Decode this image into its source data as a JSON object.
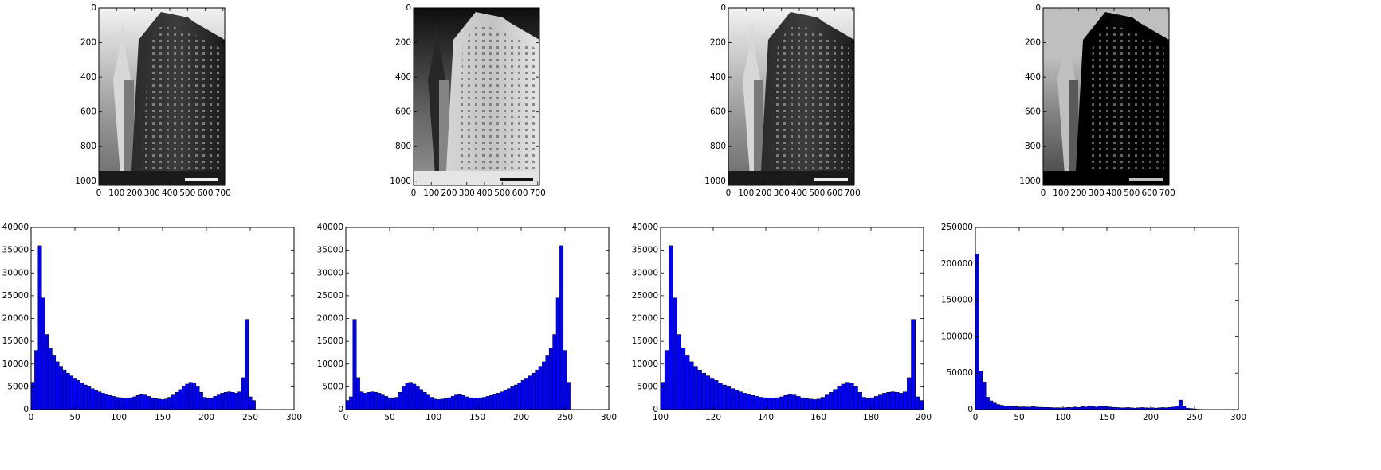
{
  "chart_data": [
    {
      "type": "image",
      "xlim": [
        0,
        710
      ],
      "ylim": [
        1024,
        0
      ],
      "xticks": [
        0,
        100,
        200,
        300,
        400,
        500,
        600,
        700
      ],
      "yticks": [
        0,
        200,
        400,
        600,
        800,
        1000
      ]
    },
    {
      "type": "image",
      "xlim": [
        0,
        710
      ],
      "ylim": [
        1024,
        0
      ],
      "xticks": [
        0,
        100,
        200,
        300,
        400,
        500,
        600,
        700
      ],
      "yticks": [
        0,
        200,
        400,
        600,
        800,
        1000
      ]
    },
    {
      "type": "image",
      "xlim": [
        0,
        710
      ],
      "ylim": [
        1024,
        0
      ],
      "xticks": [
        0,
        100,
        200,
        300,
        400,
        500,
        600,
        700
      ],
      "yticks": [
        0,
        200,
        400,
        600,
        800,
        1000
      ]
    },
    {
      "type": "image",
      "xlim": [
        0,
        710
      ],
      "ylim": [
        1024,
        0
      ],
      "xticks": [
        0,
        100,
        200,
        300,
        400,
        500,
        600,
        700
      ],
      "yticks": [
        0,
        200,
        400,
        600,
        800,
        1000
      ]
    },
    {
      "type": "histogram",
      "color": "#0000ff",
      "xlim": [
        0,
        300
      ],
      "ylim": [
        0,
        40000
      ],
      "xticks": [
        0,
        50,
        100,
        150,
        200,
        250,
        300
      ],
      "yticks": [
        0,
        5000,
        10000,
        15000,
        20000,
        25000,
        30000,
        35000,
        40000
      ],
      "bins": [
        0,
        4,
        8,
        12,
        16,
        20,
        24,
        28,
        32,
        36,
        40,
        44,
        48,
        52,
        56,
        60,
        64,
        68,
        72,
        76,
        80,
        84,
        88,
        92,
        96,
        100,
        104,
        108,
        112,
        116,
        120,
        124,
        128,
        132,
        136,
        140,
        144,
        148,
        152,
        156,
        160,
        164,
        168,
        172,
        176,
        180,
        184,
        188,
        192,
        196,
        200,
        204,
        208,
        212,
        216,
        220,
        224,
        228,
        232,
        236,
        240,
        244,
        248,
        252,
        256
      ],
      "counts": [
        6000,
        13000,
        36000,
        24500,
        16500,
        13500,
        11800,
        10500,
        9500,
        8700,
        8000,
        7400,
        6900,
        6400,
        5900,
        5400,
        5000,
        4600,
        4200,
        3900,
        3600,
        3300,
        3100,
        2900,
        2700,
        2600,
        2500,
        2500,
        2600,
        2800,
        3100,
        3300,
        3200,
        2900,
        2600,
        2400,
        2300,
        2200,
        2300,
        2700,
        3200,
        3800,
        4400,
        5000,
        5600,
        6000,
        5900,
        5000,
        3800,
        2700,
        2400,
        2600,
        2900,
        3200,
        3600,
        3800,
        3900,
        3800,
        3600,
        3900,
        7000,
        19800,
        2800,
        2000
      ]
    },
    {
      "type": "histogram",
      "color": "#0000ff",
      "xlim": [
        0,
        300
      ],
      "ylim": [
        0,
        40000
      ],
      "xticks": [
        0,
        50,
        100,
        150,
        200,
        250,
        300
      ],
      "yticks": [
        0,
        5000,
        10000,
        15000,
        20000,
        25000,
        30000,
        35000,
        40000
      ],
      "bins": [
        0,
        4,
        8,
        12,
        16,
        20,
        24,
        28,
        32,
        36,
        40,
        44,
        48,
        52,
        56,
        60,
        64,
        68,
        72,
        76,
        80,
        84,
        88,
        92,
        96,
        100,
        104,
        108,
        112,
        116,
        120,
        124,
        128,
        132,
        136,
        140,
        144,
        148,
        152,
        156,
        160,
        164,
        168,
        172,
        176,
        180,
        184,
        188,
        192,
        196,
        200,
        204,
        208,
        212,
        216,
        220,
        224,
        228,
        232,
        236,
        240,
        244,
        248,
        252,
        256
      ],
      "counts": [
        2000,
        2800,
        19800,
        7000,
        3900,
        3600,
        3800,
        3900,
        3800,
        3600,
        3200,
        2900,
        2600,
        2400,
        2700,
        3800,
        5000,
        5900,
        6000,
        5600,
        5000,
        4400,
        3800,
        3200,
        2700,
        2300,
        2200,
        2300,
        2400,
        2600,
        2900,
        3200,
        3300,
        3100,
        2800,
        2600,
        2500,
        2500,
        2600,
        2700,
        2900,
        3100,
        3300,
        3600,
        3900,
        4200,
        4600,
        5000,
        5400,
        5900,
        6400,
        6900,
        7400,
        8000,
        8700,
        9500,
        10500,
        11800,
        13500,
        16500,
        24500,
        36000,
        13000,
        6000
      ]
    },
    {
      "type": "histogram",
      "color": "#0000ff",
      "xlim": [
        100,
        200
      ],
      "ylim": [
        0,
        40000
      ],
      "xticks": [
        100,
        120,
        140,
        160,
        180,
        200
      ],
      "yticks": [
        0,
        5000,
        10000,
        15000,
        20000,
        25000,
        30000,
        35000,
        40000
      ],
      "bins": [
        100,
        101.5625,
        103.125,
        104.6875,
        106.25,
        107.8125,
        109.375,
        110.9375,
        112.5,
        114.0625,
        115.625,
        117.1875,
        118.75,
        120.3125,
        121.875,
        123.4375,
        125,
        126.5625,
        128.125,
        129.6875,
        131.25,
        132.8125,
        134.375,
        135.9375,
        137.5,
        139.0625,
        140.625,
        142.1875,
        143.75,
        145.3125,
        146.875,
        148.4375,
        150,
        151.5625,
        153.125,
        154.6875,
        156.25,
        157.8125,
        159.375,
        160.9375,
        162.5,
        164.0625,
        165.625,
        167.1875,
        168.75,
        170.3125,
        171.875,
        173.4375,
        175,
        176.5625,
        178.125,
        179.6875,
        181.25,
        182.8125,
        184.375,
        185.9375,
        187.5,
        189.0625,
        190.625,
        192.1875,
        193.75,
        195.3125,
        196.875,
        198.4375,
        200
      ],
      "counts": [
        6000,
        13000,
        36000,
        24500,
        16500,
        13500,
        11800,
        10500,
        9500,
        8700,
        8000,
        7400,
        6900,
        6400,
        5900,
        5400,
        5000,
        4600,
        4200,
        3900,
        3600,
        3300,
        3100,
        2900,
        2700,
        2600,
        2500,
        2500,
        2600,
        2800,
        3100,
        3300,
        3200,
        2900,
        2600,
        2400,
        2300,
        2200,
        2300,
        2700,
        3200,
        3800,
        4400,
        5000,
        5600,
        6000,
        5900,
        5000,
        3800,
        2700,
        2400,
        2600,
        2900,
        3200,
        3600,
        3800,
        3900,
        3800,
        3600,
        3900,
        7000,
        19800,
        2800,
        2000
      ]
    },
    {
      "type": "histogram",
      "color": "#0000ff",
      "xlim": [
        0,
        300
      ],
      "ylim": [
        0,
        250000
      ],
      "xticks": [
        0,
        50,
        100,
        150,
        200,
        250,
        300
      ],
      "yticks": [
        0,
        50000,
        100000,
        150000,
        200000,
        250000
      ],
      "bins": [
        0,
        4,
        8,
        12,
        16,
        20,
        24,
        28,
        32,
        36,
        40,
        44,
        48,
        52,
        56,
        60,
        64,
        68,
        72,
        76,
        80,
        84,
        88,
        92,
        96,
        100,
        104,
        108,
        112,
        116,
        120,
        124,
        128,
        132,
        136,
        140,
        144,
        148,
        152,
        156,
        160,
        164,
        168,
        172,
        176,
        180,
        184,
        188,
        192,
        196,
        200,
        204,
        208,
        212,
        216,
        220,
        224,
        228,
        232,
        236,
        240,
        244,
        248,
        252,
        256
      ],
      "counts": [
        213000,
        53000,
        38000,
        17000,
        12000,
        9000,
        7000,
        6000,
        5000,
        4500,
        4000,
        4000,
        3500,
        3800,
        3600,
        3500,
        4000,
        3500,
        3200,
        3000,
        3000,
        2800,
        2500,
        2600,
        2400,
        2500,
        3000,
        2800,
        3500,
        3000,
        4000,
        3500,
        4500,
        4000,
        3500,
        4800,
        4000,
        4500,
        3500,
        3000,
        2800,
        2500,
        2500,
        2800,
        2500,
        2000,
        2500,
        2800,
        2500,
        2200,
        2500,
        2000,
        2500,
        2800,
        2500,
        3000,
        3500,
        5000,
        13000,
        5000,
        2000,
        1500,
        1000,
        500
      ]
    }
  ]
}
